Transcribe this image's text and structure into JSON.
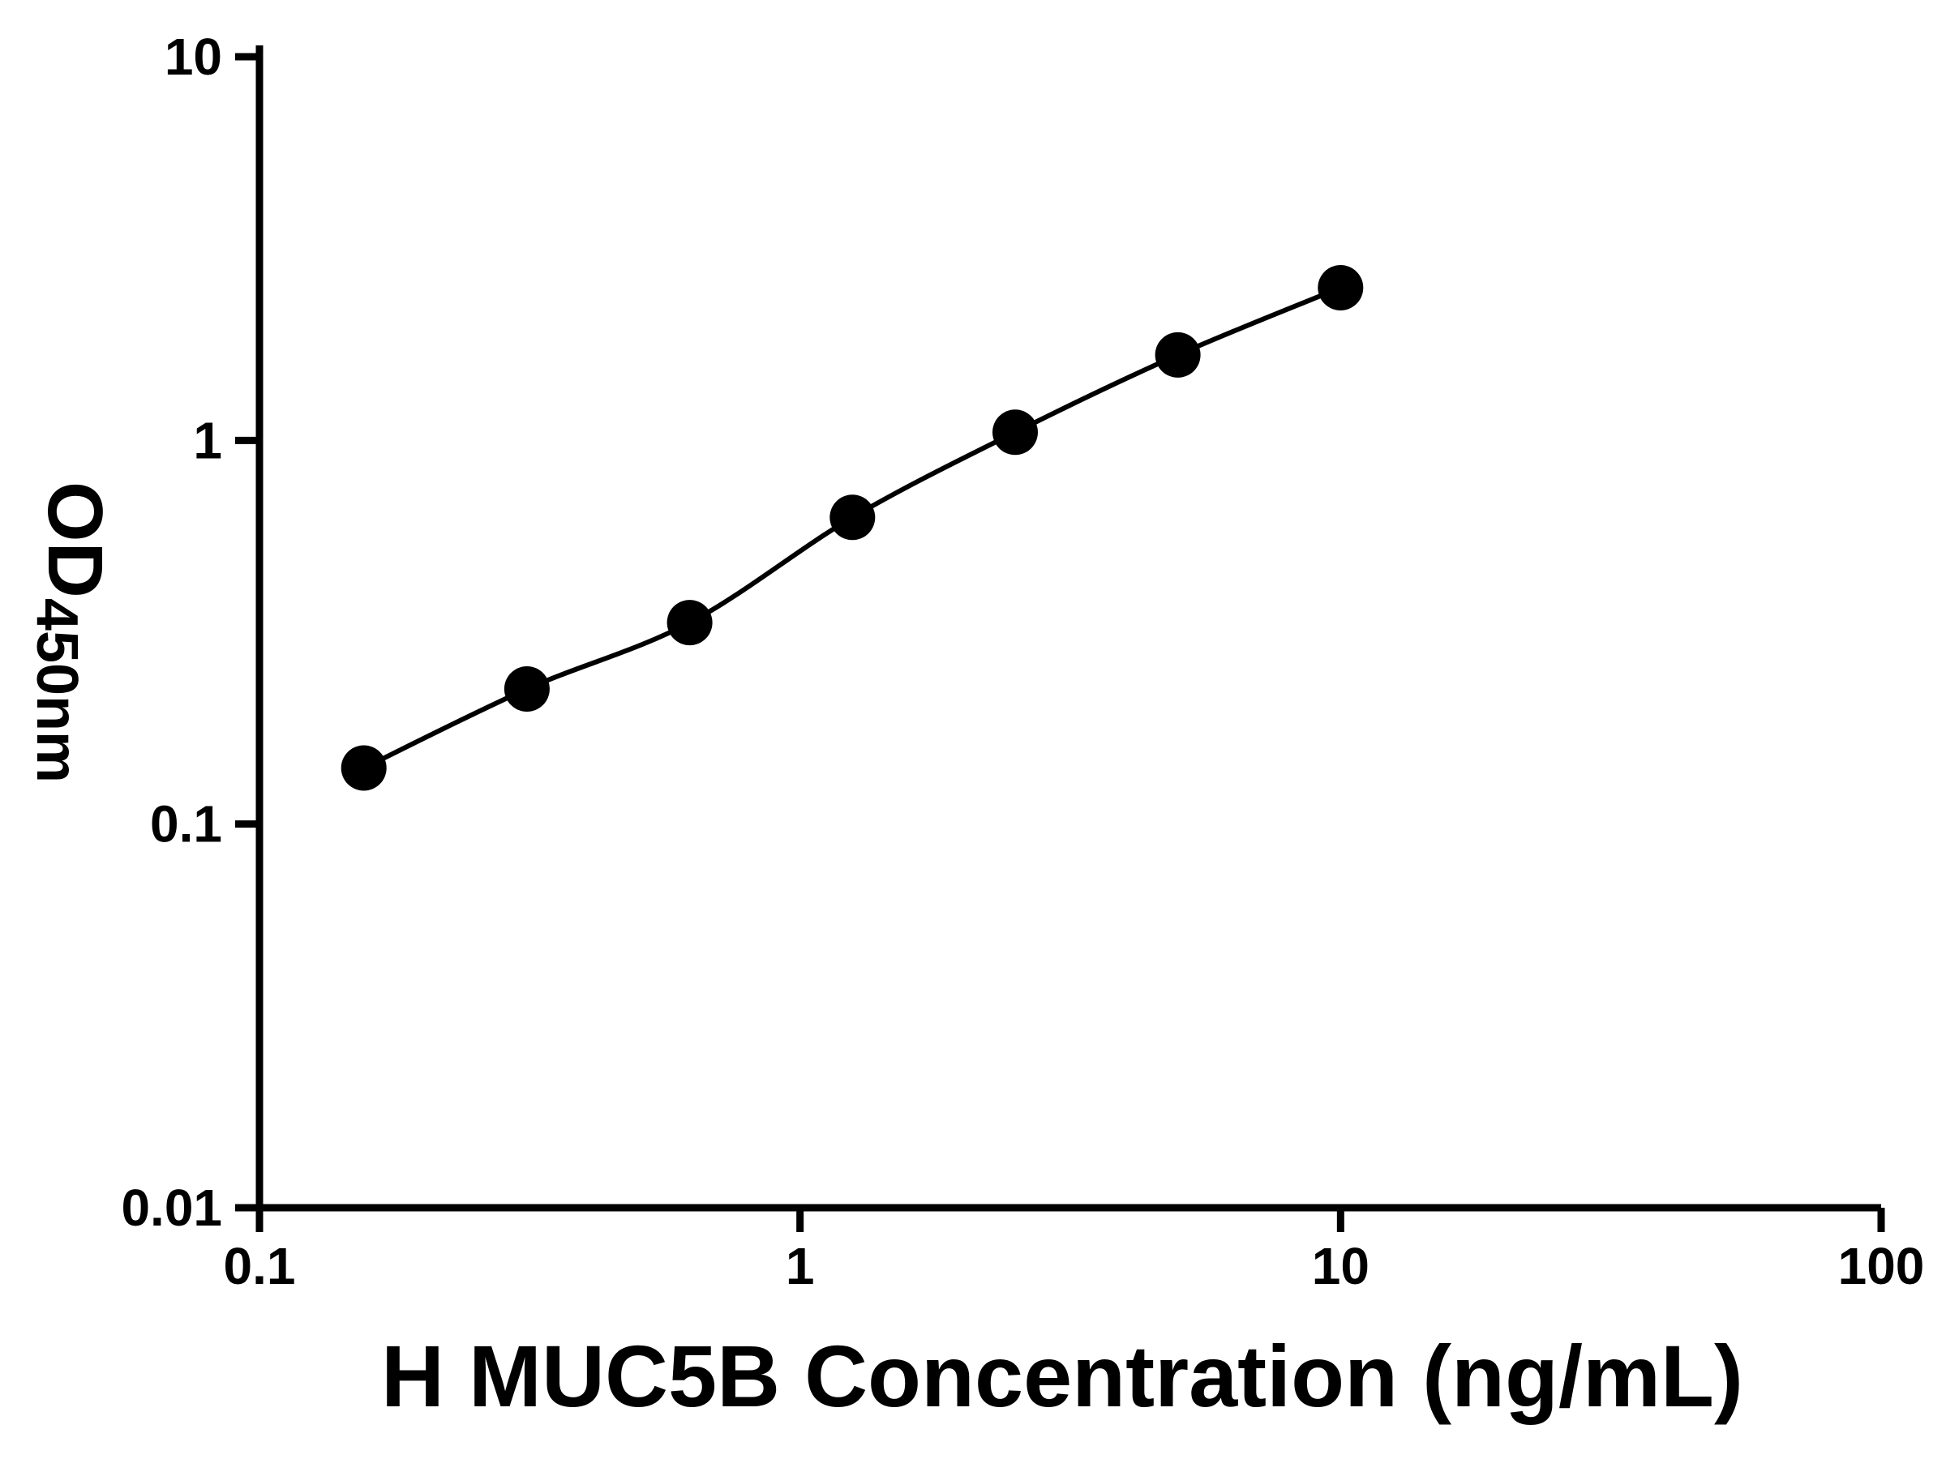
{
  "figure": {
    "background": "#ffffff"
  },
  "colors": {
    "axis": "#000000",
    "curve": "#000000",
    "marker": "#000000",
    "text": "#000000",
    "background": "#ffffff"
  },
  "chart_data": {
    "type": "scatter",
    "subtype": "log-log ELISA standard curve with fitted line through points",
    "title": "",
    "xlabel": "H MUC5B Concentration (ng/mL)",
    "ylabel_main": "OD",
    "ylabel_sub": "450nm",
    "x_scale": "log10",
    "y_scale": "log10",
    "xlim": [
      0.1,
      100
    ],
    "ylim": [
      0.01,
      10
    ],
    "grid": false,
    "legend": false,
    "x_ticks": [
      {
        "value": 0.1,
        "label": "0.1"
      },
      {
        "value": 1,
        "label": "1"
      },
      {
        "value": 10,
        "label": "10"
      },
      {
        "value": 100,
        "label": "100"
      }
    ],
    "y_ticks": [
      {
        "value": 0.01,
        "label": "0.01"
      },
      {
        "value": 0.1,
        "label": "0.1"
      },
      {
        "value": 1,
        "label": "1"
      },
      {
        "value": 10,
        "label": "10"
      }
    ],
    "series": [
      {
        "marker": "filled-circle",
        "color": "#000000",
        "points": [
          {
            "x": 0.156,
            "y": 0.14
          },
          {
            "x": 0.3125,
            "y": 0.225
          },
          {
            "x": 0.625,
            "y": 0.335
          },
          {
            "x": 1.25,
            "y": 0.63
          },
          {
            "x": 2.5,
            "y": 1.05
          },
          {
            "x": 5,
            "y": 1.67
          },
          {
            "x": 10,
            "y": 2.5
          }
        ]
      }
    ]
  }
}
